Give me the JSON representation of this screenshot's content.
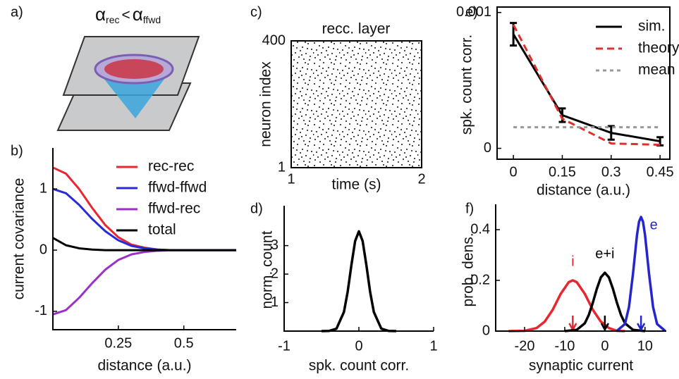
{
  "schematic": {
    "panel_label": "a)",
    "left": {
      "symbol": "α",
      "subscript": "rec"
    },
    "relation": "<",
    "right": {
      "symbol": "α",
      "subscript": "ffwd"
    }
  },
  "chart_data": [
    {
      "type": "line",
      "panel_label": "b)",
      "xlabel": "distance (a.u.)",
      "ylabel": "current covariance",
      "x": [
        0,
        0.05,
        0.1,
        0.15,
        0.2,
        0.25,
        0.3,
        0.35,
        0.4,
        0.45,
        0.5,
        0.55,
        0.6,
        0.65,
        0.7
      ],
      "series": [
        {
          "name": "rec-rec",
          "color": "#e8262f",
          "values": [
            1.35,
            1.25,
            1.0,
            0.69,
            0.41,
            0.21,
            0.09,
            0.04,
            0.01,
            0,
            0,
            0,
            0,
            0,
            0
          ]
        },
        {
          "name": "ffwd-ffwd",
          "color": "#2a2ad6",
          "values": [
            1.0,
            0.93,
            0.74,
            0.51,
            0.31,
            0.16,
            0.07,
            0.03,
            0.01,
            0,
            0,
            0,
            0,
            0,
            0
          ]
        },
        {
          "name": "ffwd-rec",
          "color": "#9b30c9",
          "values": [
            -1.05,
            -0.98,
            -0.78,
            -0.54,
            -0.32,
            -0.16,
            -0.07,
            -0.03,
            -0.01,
            0,
            0,
            0,
            0,
            0,
            0
          ]
        },
        {
          "name": "total",
          "color": "#000000",
          "values": [
            0.2,
            0.08,
            0.03,
            0.01,
            0,
            0,
            0,
            0,
            0,
            0,
            0,
            0,
            0,
            0,
            0
          ]
        }
      ],
      "xlim": [
        0,
        0.7
      ],
      "ylim": [
        -1.3,
        1.67
      ],
      "xticks": [
        0.25,
        0.5
      ],
      "yticks": [
        -1,
        0,
        1
      ],
      "frame": false,
      "legend": "upper right"
    },
    {
      "type": "raster",
      "panel_label": "c)",
      "title": "recc. layer",
      "xlabel": "time (s)",
      "ylabel": "neuron index",
      "xlim": [
        1,
        2
      ],
      "ylim": [
        1,
        400
      ],
      "xticks": [
        1,
        2
      ],
      "yticks": [
        1,
        400
      ],
      "frame": true
    },
    {
      "type": "line",
      "panel_label": "d)",
      "xlabel": "spk. count corr.",
      "ylabel": "norm. count",
      "x": [
        -0.5,
        -0.4,
        -0.3,
        -0.2,
        -0.15,
        -0.1,
        -0.05,
        0,
        0.05,
        0.1,
        0.15,
        0.2,
        0.3,
        0.4,
        0.5
      ],
      "series": [
        {
          "color": "#000000",
          "values": [
            0,
            0.005,
            0.085,
            0.67,
            1.38,
            2.32,
            3.16,
            3.5,
            3.16,
            2.32,
            1.38,
            0.67,
            0.085,
            0.005,
            0
          ]
        }
      ],
      "xlim": [
        -1,
        1
      ],
      "ylim": [
        0,
        4.4
      ],
      "xticks": [
        -1,
        0,
        1
      ],
      "yticks": [
        1,
        2,
        3
      ],
      "frame": false
    },
    {
      "type": "line",
      "panel_label": "e)",
      "xlabel": "distance (a.u.)",
      "ylabel": "spk. count corr.",
      "x": [
        0,
        0.15,
        0.3,
        0.45
      ],
      "series": [
        {
          "name": "sim.",
          "color": "#000000",
          "values": [
            0.00084,
            0.000244,
            0.000114,
            5.2e-05
          ],
          "errors": [
            8.3e-05,
            5e-05,
            5e-05,
            3e-05
          ]
        },
        {
          "name": "theory",
          "color": "#e0302c",
          "dash": "dashed",
          "values": [
            0.00091,
            0.000218,
            3.6e-05,
            2.6e-05
          ]
        },
        {
          "name": "mean",
          "color": "#999999",
          "dash": "dotted",
          "values": [
            0.000155,
            0.000155,
            0.000155,
            0.000155
          ]
        }
      ],
      "xlim": [
        -0.05,
        0.48
      ],
      "ylim": [
        -8e-05,
        0.00104
      ],
      "xticks": [
        0,
        0.15,
        0.3,
        0.45
      ],
      "yticks": [
        0,
        0.001
      ],
      "frame": true,
      "legend": "upper right"
    },
    {
      "type": "line",
      "panel_label": "f)",
      "xlabel": "synaptic current",
      "ylabel": "prob. dens.",
      "series": [
        {
          "name": "i",
          "color": "#e8262f",
          "mean": -8,
          "x": [
            -24,
            -20,
            -17,
            -15,
            -13,
            -11,
            -9,
            -8,
            -7,
            -5,
            -3,
            -1,
            1,
            3,
            5
          ],
          "values": [
            0,
            0.001,
            0.012,
            0.037,
            0.084,
            0.147,
            0.193,
            0.2,
            0.193,
            0.147,
            0.084,
            0.037,
            0.012,
            0.001,
            0
          ]
        },
        {
          "name": "e+i",
          "color": "#000000",
          "mean": 0,
          "x": [
            -10,
            -7,
            -5,
            -4,
            -3,
            -2,
            -1,
            0,
            1,
            2,
            3,
            4,
            5,
            7,
            10
          ],
          "values": [
            0,
            0.005,
            0.031,
            0.064,
            0.112,
            0.167,
            0.212,
            0.23,
            0.212,
            0.167,
            0.112,
            0.064,
            0.031,
            0.005,
            0
          ]
        },
        {
          "name": "e",
          "color": "#2525d0",
          "mean": 9,
          "x": [
            3,
            5,
            6,
            7,
            8,
            8.5,
            9,
            9.5,
            10,
            11,
            12,
            13,
            15
          ],
          "values": [
            0.001,
            0.028,
            0.095,
            0.226,
            0.379,
            0.431,
            0.45,
            0.431,
            0.379,
            0.226,
            0.095,
            0.028,
            0.001
          ]
        }
      ],
      "xlim": [
        -27.2,
        15.3
      ],
      "ylim": [
        0,
        0.5
      ],
      "xticks": [
        -20,
        -10,
        0,
        10
      ],
      "yticks": [
        0,
        0.2,
        0.4
      ],
      "frame": false,
      "series_labels": true
    }
  ]
}
